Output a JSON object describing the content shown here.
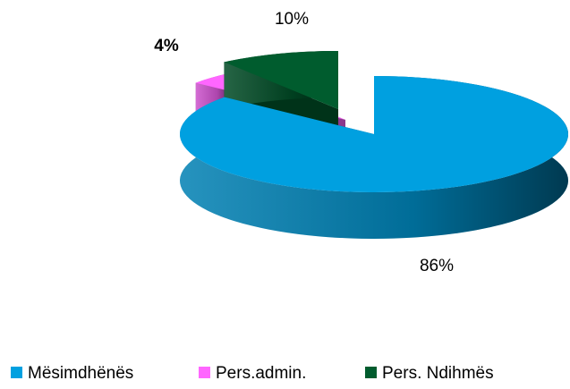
{
  "chart_data": {
    "type": "pie3d",
    "categories": [
      "Mësimdhënës",
      "Pers.admin.",
      "Pers. Ndihmës"
    ],
    "values": [
      86,
      4,
      10
    ],
    "value_labels": [
      "86%",
      "4%",
      "10%"
    ],
    "colors": [
      "#00a0e0",
      "#ff66ff",
      "#005c2e"
    ],
    "legend": "bottom"
  }
}
